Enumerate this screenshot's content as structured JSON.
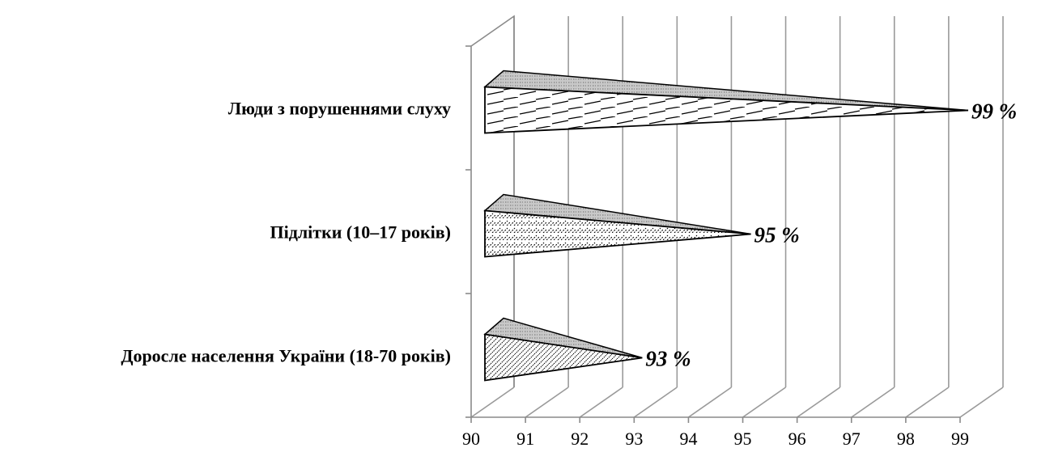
{
  "chart_data": {
    "type": "bar",
    "orientation": "horizontal",
    "style": "3d-cone",
    "categories": [
      "Доросле населення України (18-70 років)",
      "Підлітки (10–17 років)",
      "Люди з порушеннями слуху"
    ],
    "values": [
      93,
      95,
      99
    ],
    "data_labels": [
      "93 %",
      "95 %",
      "99 %"
    ],
    "xlim": [
      90,
      99
    ],
    "x_ticks": [
      "90",
      "91",
      "92",
      "93",
      "94",
      "95",
      "96",
      "97",
      "98",
      "99"
    ],
    "grid": true,
    "legend": "none",
    "title": "",
    "xlabel": "",
    "ylabel": ""
  }
}
